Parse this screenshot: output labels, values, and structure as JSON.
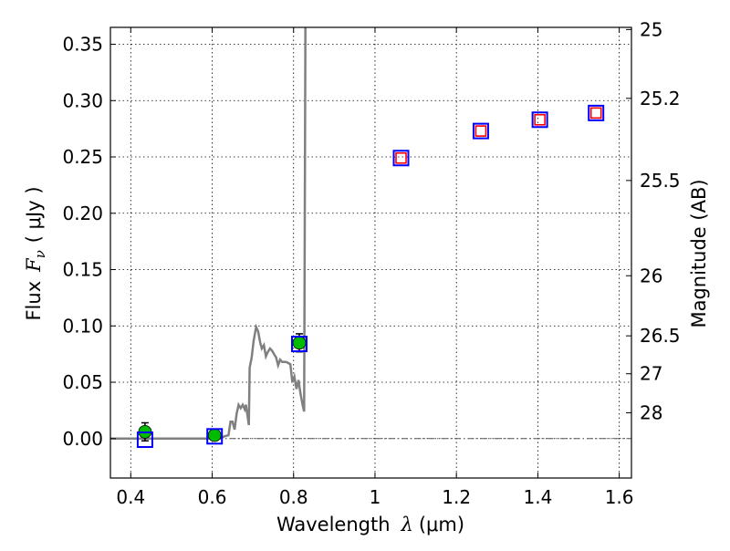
{
  "chart_data": {
    "type": "scatter",
    "xlabel": "Wavelength",
    "xlabel_symbol": "λ",
    "xlabel_unit": "(μm)",
    "ylabel": "Flux",
    "ylabel_symbol": "F",
    "ylabel_subscript": "ν",
    "ylabel_unit": "( μJy )",
    "y2label": "Magnitude (AB)",
    "xlim": [
      0.35,
      1.63
    ],
    "ylim": [
      -0.035,
      0.365
    ],
    "grid": true,
    "xticks": [
      {
        "value": 0.4,
        "label": "0.4"
      },
      {
        "value": 0.6,
        "label": "0.6"
      },
      {
        "value": 0.8,
        "label": "0.8"
      },
      {
        "value": 1.0,
        "label": "1"
      },
      {
        "value": 1.2,
        "label": "1.2"
      },
      {
        "value": 1.4,
        "label": "1.4"
      },
      {
        "value": 1.6,
        "label": "1.6"
      }
    ],
    "yticks": [
      {
        "value": 0.0,
        "label": "0.00"
      },
      {
        "value": 0.05,
        "label": "0.05"
      },
      {
        "value": 0.1,
        "label": "0.10"
      },
      {
        "value": 0.15,
        "label": "0.15"
      },
      {
        "value": 0.2,
        "label": "0.20"
      },
      {
        "value": 0.25,
        "label": "0.25"
      },
      {
        "value": 0.3,
        "label": "0.30"
      },
      {
        "value": 0.35,
        "label": "0.35"
      }
    ],
    "y2ticks": [
      {
        "value": 25,
        "label": "25"
      },
      {
        "value": 25.2,
        "label": "25.2"
      },
      {
        "value": 25.5,
        "label": "25.5"
      },
      {
        "value": 26,
        "label": "26"
      },
      {
        "value": 26.5,
        "label": "26.5"
      },
      {
        "value": 27,
        "label": "27"
      },
      {
        "value": 28,
        "label": "28"
      }
    ],
    "series": [
      {
        "kind": "model_spectrum",
        "color": "#808080",
        "points": [
          [
            0.35,
            0.0
          ],
          [
            0.62,
            0.0
          ],
          [
            0.63,
            0.002
          ],
          [
            0.64,
            0.003
          ],
          [
            0.645,
            0.015
          ],
          [
            0.65,
            0.015
          ],
          [
            0.655,
            0.008
          ],
          [
            0.66,
            0.022
          ],
          [
            0.665,
            0.03
          ],
          [
            0.67,
            0.027
          ],
          [
            0.675,
            0.03
          ],
          [
            0.68,
            0.026
          ],
          [
            0.683,
            0.03
          ],
          [
            0.687,
            0.02
          ],
          [
            0.69,
            0.012
          ],
          [
            0.692,
            0.063
          ],
          [
            0.697,
            0.072
          ],
          [
            0.702,
            0.087
          ],
          [
            0.708,
            0.099
          ],
          [
            0.713,
            0.095
          ],
          [
            0.718,
            0.085
          ],
          [
            0.722,
            0.08
          ],
          [
            0.727,
            0.083
          ],
          [
            0.732,
            0.073
          ],
          [
            0.737,
            0.077
          ],
          [
            0.742,
            0.08
          ],
          [
            0.747,
            0.078
          ],
          [
            0.752,
            0.075
          ],
          [
            0.757,
            0.072
          ],
          [
            0.762,
            0.065
          ],
          [
            0.767,
            0.07
          ],
          [
            0.772,
            0.068
          ],
          [
            0.782,
            0.068
          ],
          [
            0.792,
            0.066
          ],
          [
            0.797,
            0.05
          ],
          [
            0.802,
            0.055
          ],
          [
            0.807,
            0.044
          ],
          [
            0.812,
            0.052
          ],
          [
            0.817,
            0.04
          ],
          [
            0.822,
            0.03
          ],
          [
            0.826,
            0.024
          ],
          [
            0.829,
            0.365
          ]
        ]
      },
      {
        "kind": "observed_flux",
        "marker": "circle",
        "color": "#00bb00",
        "points": [
          {
            "x": 0.435,
            "y": 0.006,
            "err": 0.008
          },
          {
            "x": 0.606,
            "y": 0.003,
            "err": 0.004
          },
          {
            "x": 0.814,
            "y": 0.085,
            "err": 0.008
          }
        ]
      },
      {
        "kind": "model_photometry",
        "marker": "square",
        "color": "#0000ff",
        "points": [
          {
            "x": 0.435,
            "y": -0.001
          },
          {
            "x": 0.606,
            "y": 0.002
          },
          {
            "x": 0.814,
            "y": 0.084
          },
          {
            "x": 1.064,
            "y": 0.249
          },
          {
            "x": 1.26,
            "y": 0.273
          },
          {
            "x": 1.405,
            "y": 0.283
          },
          {
            "x": 1.543,
            "y": 0.289
          }
        ]
      },
      {
        "kind": "upper_limits",
        "marker": "square",
        "color": "#ff0000",
        "points": [
          {
            "x": 1.064,
            "y": 0.249
          },
          {
            "x": 1.26,
            "y": 0.273
          },
          {
            "x": 1.405,
            "y": 0.283
          },
          {
            "x": 1.543,
            "y": 0.289
          }
        ]
      }
    ],
    "zero_line": {
      "y": 0,
      "style": "dash-dot",
      "color": "#555555"
    }
  }
}
